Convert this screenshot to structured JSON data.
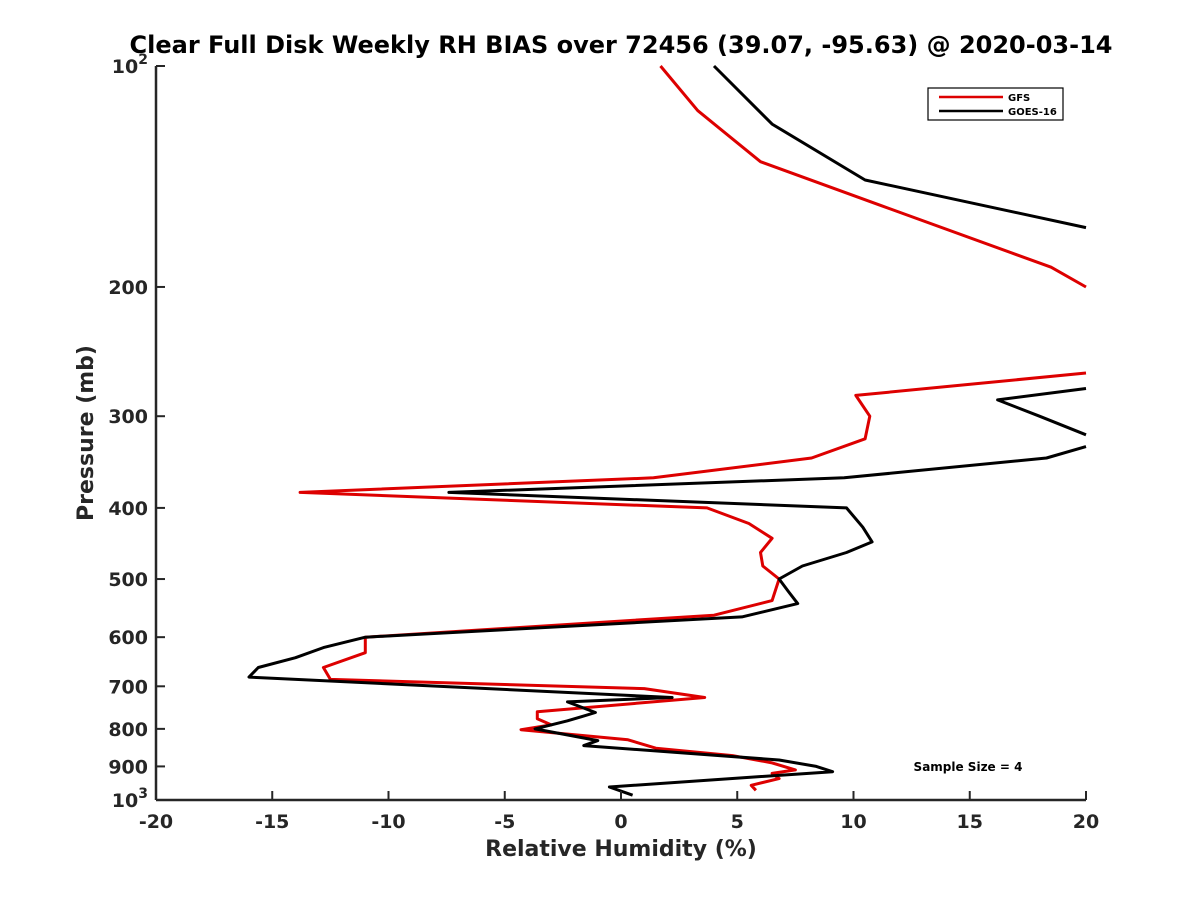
{
  "chart_data": {
    "type": "line",
    "title": "Clear Full Disk Weekly RH BIAS over 72456 (39.07, -95.63) @ 2020-03-14",
    "xlabel": "Relative Humidity (%)",
    "ylabel": "Pressure (mb)",
    "xlim": [
      -20,
      20
    ],
    "ylim": [
      100,
      1000
    ],
    "yscale": "log",
    "y_reversed": true,
    "xticks": [
      {
        "value": -20,
        "label": "-20"
      },
      {
        "value": -15,
        "label": "-15"
      },
      {
        "value": -10,
        "label": "-10"
      },
      {
        "value": -5,
        "label": "-5"
      },
      {
        "value": 0,
        "label": "0"
      },
      {
        "value": 5,
        "label": "5"
      },
      {
        "value": 10,
        "label": "10"
      },
      {
        "value": 15,
        "label": "15"
      },
      {
        "value": 20,
        "label": "20"
      }
    ],
    "yticks": [
      {
        "value": 100,
        "base": "10",
        "exp": "2"
      },
      {
        "value": 200,
        "base": "200",
        "exp": ""
      },
      {
        "value": 300,
        "base": "300",
        "exp": ""
      },
      {
        "value": 400,
        "base": "400",
        "exp": ""
      },
      {
        "value": 500,
        "base": "500",
        "exp": ""
      },
      {
        "value": 600,
        "base": "600",
        "exp": ""
      },
      {
        "value": 700,
        "base": "700",
        "exp": ""
      },
      {
        "value": 800,
        "base": "800",
        "exp": ""
      },
      {
        "value": 900,
        "base": "900",
        "exp": ""
      },
      {
        "value": 1000,
        "base": "10",
        "exp": "3"
      }
    ],
    "legend": {
      "position": "top-right"
    },
    "annotation": "Sample Size = 4",
    "series": [
      {
        "name": "GFS",
        "color": "#dd0000",
        "points": [
          [
            1.7,
            100
          ],
          [
            3.3,
            115
          ],
          [
            6.0,
            135
          ],
          [
            11.2,
            155
          ],
          [
            18.5,
            188
          ],
          [
            20.0,
            200
          ],
          [
            null,
            null
          ],
          [
            20.0,
            262
          ],
          [
            10.1,
            281
          ],
          [
            10.7,
            300
          ],
          [
            10.5,
            322
          ],
          [
            8.2,
            342
          ],
          [
            1.4,
            364
          ],
          [
            -13.8,
            381
          ],
          [
            3.7,
            400
          ],
          [
            5.5,
            420
          ],
          [
            6.5,
            440
          ],
          [
            6.0,
            460
          ],
          [
            6.1,
            480
          ],
          [
            6.8,
            500
          ],
          [
            6.5,
            535
          ],
          [
            4.0,
            560
          ],
          [
            -11.0,
            600
          ],
          [
            -11.0,
            630
          ],
          [
            -12.8,
            660
          ],
          [
            -12.5,
            685
          ],
          [
            1.0,
            705
          ],
          [
            3.6,
            725
          ],
          [
            -3.6,
            758
          ],
          [
            -3.6,
            775
          ],
          [
            -3.0,
            790
          ],
          [
            -4.3,
            802
          ],
          [
            -2.0,
            815
          ],
          [
            0.3,
            828
          ],
          [
            1.5,
            850
          ],
          [
            4.8,
            870
          ],
          [
            6.5,
            890
          ],
          [
            7.5,
            910
          ],
          [
            6.5,
            920
          ],
          [
            6.8,
            935
          ],
          [
            5.6,
            955
          ],
          [
            5.8,
            970
          ]
        ]
      },
      {
        "name": "GOES-16",
        "color": "#000000",
        "points": [
          [
            4.0,
            100
          ],
          [
            6.5,
            120
          ],
          [
            10.5,
            143
          ],
          [
            20.0,
            166
          ],
          [
            null,
            null
          ],
          [
            20.0,
            275
          ],
          [
            16.2,
            285
          ],
          [
            18.0,
            300
          ],
          [
            20.0,
            318
          ],
          [
            null,
            null
          ],
          [
            20.0,
            330
          ],
          [
            18.3,
            342
          ],
          [
            9.6,
            364
          ],
          [
            -7.4,
            381
          ],
          [
            9.7,
            400
          ],
          [
            10.4,
            425
          ],
          [
            10.8,
            445
          ],
          [
            9.7,
            460
          ],
          [
            7.8,
            480
          ],
          [
            6.8,
            500
          ],
          [
            7.2,
            520
          ],
          [
            7.6,
            540
          ],
          [
            5.2,
            563
          ],
          [
            -11.0,
            600
          ],
          [
            -12.8,
            620
          ],
          [
            -14.0,
            640
          ],
          [
            -15.6,
            660
          ],
          [
            -16.0,
            680
          ],
          [
            2.2,
            725
          ],
          [
            -2.3,
            735
          ],
          [
            -1.1,
            760
          ],
          [
            -1.7,
            770
          ],
          [
            -2.3,
            780
          ],
          [
            -3.7,
            800
          ],
          [
            -1.0,
            830
          ],
          [
            -1.6,
            843
          ],
          [
            6.8,
            882
          ],
          [
            8.4,
            900
          ],
          [
            9.1,
            915
          ],
          [
            5.8,
            930
          ],
          [
            -0.5,
            960
          ],
          [
            0.5,
            985
          ]
        ]
      }
    ]
  }
}
